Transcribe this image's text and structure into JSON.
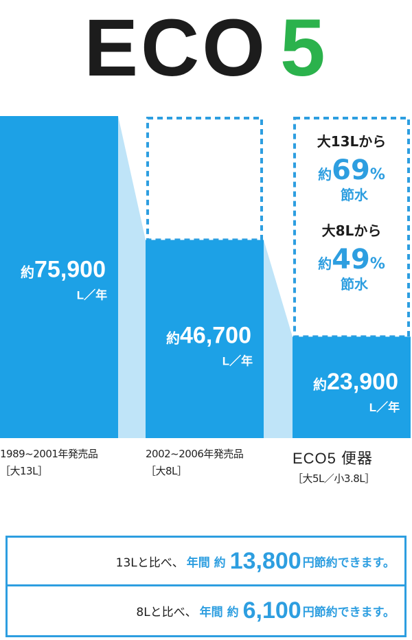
{
  "title": {
    "eco": "ECO",
    "five": "5"
  },
  "colors": {
    "bar": "#1da1e6",
    "connector": "#bfe4f8",
    "accent": "#2d9ee0",
    "title_green": "#2bb24c"
  },
  "chart_data": {
    "type": "bar",
    "unit": "L／年",
    "value_prefix": "約",
    "categories": [
      {
        "line1": "1989~2001年発売品",
        "line2": "［大13L］"
      },
      {
        "line1": "2002~2006年発売品",
        "line2": "［大8L］"
      },
      {
        "line1": "ECO5 便器",
        "line2": "［大5L／小3.8L］"
      }
    ],
    "values": [
      75900,
      46700,
      23900
    ],
    "value_labels": [
      "75,900",
      "46,700",
      "23,900"
    ],
    "ylim": [
      0,
      75900
    ],
    "annotations": [
      {
        "from": "大13Lから",
        "prefix": "約",
        "pct": "69",
        "sign": "%",
        "label": "節水"
      },
      {
        "from": "大8Lから",
        "prefix": "約",
        "pct": "49",
        "sign": "%",
        "label": "節水"
      }
    ]
  },
  "savings": [
    {
      "pre": "13Lと比べ、",
      "mid": "年間 約",
      "amount": "13,800",
      "post": "円節約できます。"
    },
    {
      "pre": "8Lと比べ、",
      "mid": "年間 約",
      "amount": "6,100",
      "post": "円節約できます。"
    }
  ]
}
